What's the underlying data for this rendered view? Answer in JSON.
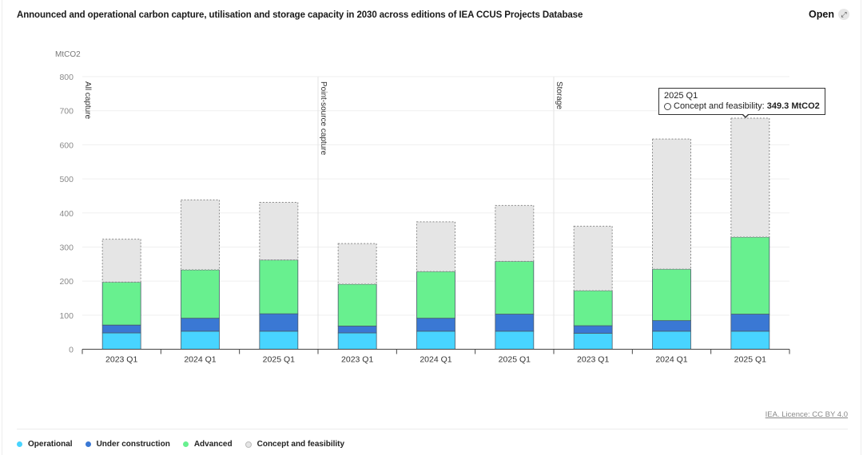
{
  "header": {
    "title": "Announced and operational carbon capture, utilisation and storage capacity in 2030 across editions of IEA CCUS Projects Database",
    "open_label": "Open",
    "open_icon": "expand-icon"
  },
  "tooltip": {
    "category": "2025 Q1",
    "series": "Concept and feasibility:",
    "value": "349.3 MtCO2"
  },
  "footer": {
    "source": "IEA. Licence: CC BY 4.0"
  },
  "legend": [
    {
      "label": "Operational",
      "color": "#48d4ff"
    },
    {
      "label": "Under construction",
      "color": "#3a78d4"
    },
    {
      "label": "Advanced",
      "color": "#68f08f"
    },
    {
      "label": "Concept and feasibility",
      "color": "#e5e5e5"
    }
  ],
  "chart_data": {
    "type": "bar",
    "stacked": true,
    "title": "Announced and operational carbon capture, utilisation and storage capacity in 2030 across editions of IEA CCUS Projects Database",
    "xlabel": "",
    "ylabel": "MtCO2",
    "ylim": [
      0,
      800
    ],
    "yticks": [
      0,
      100,
      200,
      300,
      400,
      500,
      600,
      700,
      800
    ],
    "grid": true,
    "legend_position": "bottom-left",
    "groups": [
      "All capture",
      "Point-source capture",
      "Storage"
    ],
    "categories": [
      "2023 Q1",
      "2024 Q1",
      "2025 Q1",
      "2023 Q1",
      "2024 Q1",
      "2025 Q1",
      "2023 Q1",
      "2024 Q1",
      "2025 Q1"
    ],
    "series": [
      {
        "name": "Operational",
        "color": "#48d4ff",
        "values": [
          48,
          53,
          53,
          48,
          53,
          53,
          47,
          53,
          53
        ]
      },
      {
        "name": "Under construction",
        "color": "#3a78d4",
        "values": [
          23,
          38,
          51,
          20,
          38,
          50,
          22,
          31,
          50
        ]
      },
      {
        "name": "Advanced",
        "color": "#68f08f",
        "values": [
          126,
          142,
          158,
          123,
          137,
          155,
          103,
          151,
          226
        ]
      },
      {
        "name": "Concept and feasibility",
        "color": "#e5e5e5",
        "values": [
          126,
          205,
          169,
          119,
          146,
          164,
          189,
          382,
          349.3
        ]
      }
    ],
    "annotations": [
      {
        "text": "2025 Q1 — Concept and feasibility: 349.3 MtCO2",
        "category_index": 8
      }
    ]
  }
}
